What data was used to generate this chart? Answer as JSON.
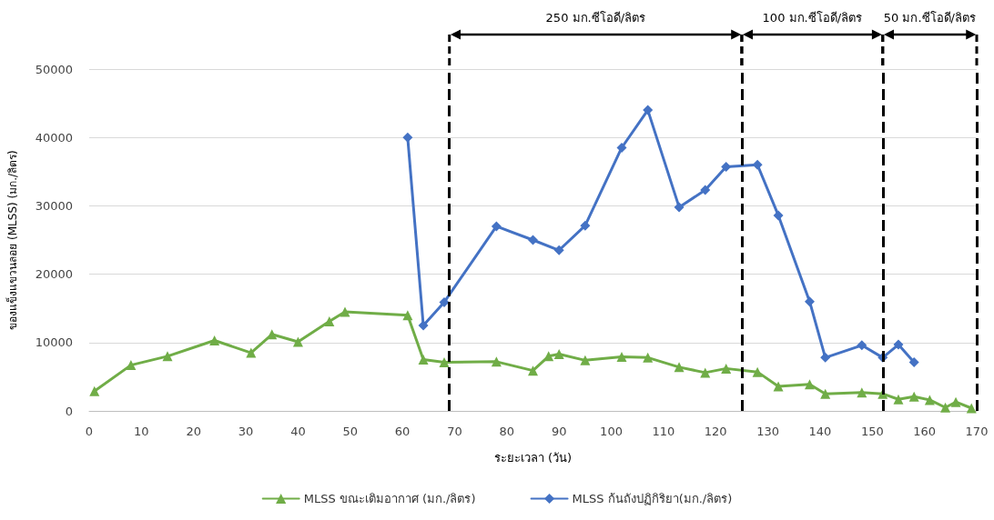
{
  "chart_data": {
    "type": "line",
    "xlabel": "ระยะเวลา (วัน)",
    "ylabel": "ของแข็งแขวนลอย (MLSS) (มก./ลิตร)",
    "xlim": [
      0,
      170
    ],
    "xticks": [
      0,
      10,
      20,
      30,
      40,
      50,
      60,
      70,
      80,
      90,
      100,
      110,
      120,
      130,
      140,
      150,
      160,
      170
    ],
    "ylim": [
      0,
      50000
    ],
    "yticks": [
      0,
      10000,
      20000,
      30000,
      40000,
      50000
    ],
    "grid": "y",
    "legend": "bottom",
    "line_style": "solid",
    "series": [
      {
        "name": "MLSS ขณะเติมอากาศ (มก./ลิตร)",
        "color": "#70ad47",
        "marker": "triangle",
        "x": [
          1,
          8,
          15,
          24,
          31,
          35,
          40,
          46,
          49,
          61,
          64,
          68,
          78,
          85,
          88,
          90,
          95,
          102,
          107,
          113,
          118,
          122,
          128,
          132,
          138,
          141,
          148,
          152,
          155,
          158,
          161,
          164,
          166,
          169
        ],
        "values": [
          2900,
          6700,
          8000,
          10300,
          8500,
          11200,
          10100,
          13100,
          14500,
          14000,
          7500,
          7100,
          7200,
          5900,
          8000,
          8300,
          7400,
          7900,
          7800,
          6400,
          5600,
          6200,
          5700,
          3600,
          3900,
          2500,
          2700,
          2500,
          1700,
          2100,
          1600,
          500,
          1300,
          400
        ]
      },
      {
        "name": "MLSS ก้นถังปฏิกิริยา(มก./ลิตร)",
        "color": "#4472c4",
        "marker": "diamond",
        "x": [
          61,
          64,
          68,
          78,
          85,
          90,
          95,
          102,
          107,
          113,
          118,
          122,
          128,
          132,
          138,
          141,
          148,
          152,
          155,
          158
        ],
        "values": [
          40000,
          12500,
          15900,
          27000,
          25000,
          23500,
          27100,
          38500,
          44000,
          29800,
          32300,
          35700,
          36000,
          28600,
          16000,
          7800,
          9600,
          7800,
          9700,
          7100
        ]
      }
    ],
    "ref_lines": [
      {
        "axis": "x",
        "value": 69,
        "color": "#000000",
        "line_style": "dashed"
      },
      {
        "axis": "x",
        "value": 125,
        "color": "#000000",
        "line_style": "dashed"
      },
      {
        "axis": "x",
        "value": 152,
        "color": "#000000",
        "line_style": "dashed"
      },
      {
        "axis": "x",
        "value": 170,
        "color": "#000000",
        "line_style": "dashed"
      }
    ],
    "annotations": [
      "250 มก.ซีโอดี/ลิตร",
      "100 มก.ซีโอดี/ลิตร",
      "50 มก.ซีโอดี/ลิตร"
    ]
  }
}
